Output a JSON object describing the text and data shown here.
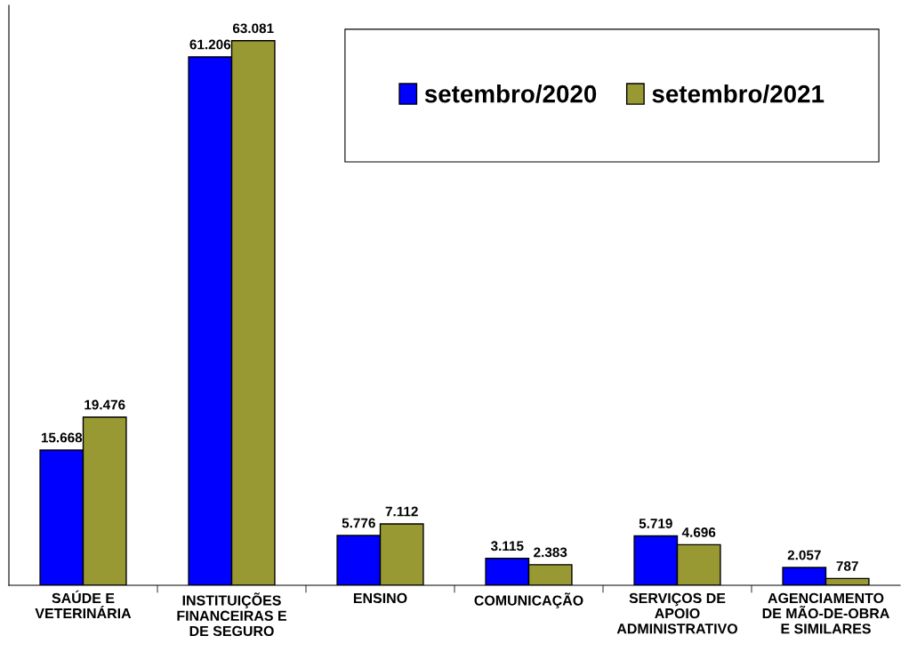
{
  "chart_data": {
    "type": "bar",
    "categories": [
      "SAÚDE E\nVETERINÁRIA",
      "INSTITUIÇÕES\nFINANCEIRAS E\nDE SEGURO",
      "ENSINO",
      "COMUNICAÇÃO",
      "SERVIÇOS DE\nAPOIO\nADMINISTRATIVO",
      "AGENCIAMENTO\nDE MÃO-DE-OBRA\nE SIMILARES"
    ],
    "series": [
      {
        "name": "setembro/2020",
        "color": "#0000ff",
        "values": [
          15668,
          61206,
          5776,
          3115,
          5719,
          2057
        ],
        "value_labels": [
          "15.668",
          "61.206",
          "5.776",
          "3.115",
          "5.719",
          "2.057"
        ]
      },
      {
        "name": "setembro/2021",
        "color": "#999933",
        "values": [
          19476,
          63081,
          7112,
          2383,
          4696,
          787
        ],
        "value_labels": [
          "19.476",
          "63.081",
          "7.112",
          "2.383",
          "4.696",
          "787"
        ]
      }
    ],
    "legend": "top right",
    "grid": false,
    "tick_labels": "x"
  }
}
